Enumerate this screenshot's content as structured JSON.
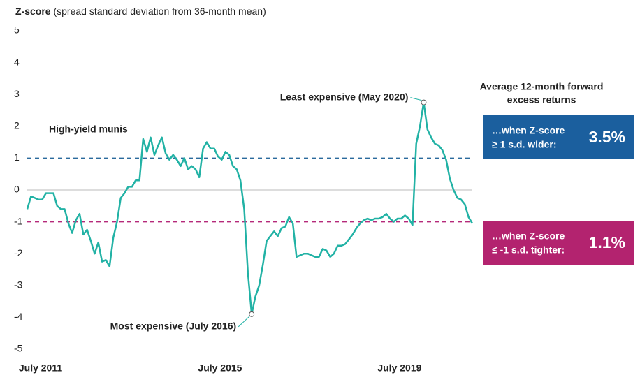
{
  "chart_data": {
    "type": "line",
    "y_label_bold": "Z-score",
    "y_label": "(spread standard deviation from 36-month mean)",
    "x": [
      "2011-07",
      "2011-08",
      "2011-09",
      "2011-10",
      "2011-11",
      "2011-12",
      "2012-01",
      "2012-02",
      "2012-03",
      "2012-04",
      "2012-05",
      "2012-06",
      "2012-07",
      "2012-08",
      "2012-09",
      "2012-10",
      "2012-11",
      "2012-12",
      "2013-01",
      "2013-02",
      "2013-03",
      "2013-04",
      "2013-05",
      "2013-06",
      "2013-07",
      "2013-08",
      "2013-09",
      "2013-10",
      "2013-11",
      "2013-12",
      "2014-01",
      "2014-02",
      "2014-03",
      "2014-04",
      "2014-05",
      "2014-06",
      "2014-07",
      "2014-08",
      "2014-09",
      "2014-10",
      "2014-11",
      "2014-12",
      "2015-01",
      "2015-02",
      "2015-03",
      "2015-04",
      "2015-05",
      "2015-06",
      "2015-07",
      "2015-08",
      "2015-09",
      "2015-10",
      "2015-11",
      "2015-12",
      "2016-01",
      "2016-02",
      "2016-03",
      "2016-04",
      "2016-05",
      "2016-06",
      "2016-07",
      "2016-08",
      "2016-09",
      "2016-10",
      "2016-11",
      "2016-12",
      "2017-01",
      "2017-02",
      "2017-03",
      "2017-04",
      "2017-05",
      "2017-06",
      "2017-07",
      "2017-08",
      "2017-09",
      "2017-10",
      "2017-11",
      "2017-12",
      "2018-01",
      "2018-02",
      "2018-03",
      "2018-04",
      "2018-05",
      "2018-06",
      "2018-07",
      "2018-08",
      "2018-09",
      "2018-10",
      "2018-11",
      "2018-12",
      "2019-01",
      "2019-02",
      "2019-03",
      "2019-04",
      "2019-05",
      "2019-06",
      "2019-07",
      "2019-08",
      "2019-09",
      "2019-10",
      "2019-11",
      "2019-12",
      "2020-01",
      "2020-02",
      "2020-03",
      "2020-04",
      "2020-05",
      "2020-06",
      "2020-07",
      "2020-08",
      "2020-09",
      "2020-10",
      "2020-11",
      "2020-12",
      "2021-01",
      "2021-02",
      "2021-03",
      "2021-04",
      "2021-05",
      "2021-06"
    ],
    "series": [
      {
        "name": "High-yield munis",
        "color": "#22b2a5",
        "values": [
          -0.6,
          -0.2,
          -0.25,
          -0.3,
          -0.3,
          -0.1,
          -0.1,
          -0.1,
          -0.5,
          -0.6,
          -0.6,
          -1.05,
          -1.35,
          -0.95,
          -0.75,
          -1.4,
          -1.25,
          -1.6,
          -2.0,
          -1.65,
          -2.25,
          -2.2,
          -2.4,
          -1.5,
          -1.0,
          -0.25,
          -0.1,
          0.1,
          0.1,
          0.3,
          0.3,
          1.6,
          1.2,
          1.65,
          1.1,
          1.4,
          1.65,
          1.15,
          0.95,
          1.1,
          0.95,
          0.75,
          1.0,
          0.65,
          0.75,
          0.65,
          0.4,
          1.3,
          1.5,
          1.3,
          1.3,
          1.05,
          0.95,
          1.2,
          1.1,
          0.75,
          0.65,
          0.3,
          -0.6,
          -2.6,
          -3.9,
          -3.35,
          -3.0,
          -2.35,
          -1.6,
          -1.45,
          -1.3,
          -1.45,
          -1.2,
          -1.15,
          -0.85,
          -1.05,
          -2.1,
          -2.05,
          -2.0,
          -2.0,
          -2.05,
          -2.1,
          -2.1,
          -1.85,
          -1.9,
          -2.1,
          -2.0,
          -1.75,
          -1.75,
          -1.7,
          -1.55,
          -1.4,
          -1.2,
          -1.05,
          -0.95,
          -0.9,
          -0.95,
          -0.9,
          -0.9,
          -0.85,
          -0.75,
          -0.9,
          -1.0,
          -0.9,
          -0.9,
          -0.8,
          -0.9,
          -1.1,
          1.45,
          2.0,
          2.75,
          1.9,
          1.65,
          1.45,
          1.4,
          1.25,
          0.95,
          0.35,
          0.0,
          -0.25,
          -0.3,
          -0.45,
          -0.85,
          -1.05
        ]
      }
    ],
    "ylim": [
      -5,
      5
    ],
    "yticks": [
      -5,
      -4,
      -3,
      -2,
      -1,
      0,
      1,
      2,
      3,
      4,
      5
    ],
    "xticks": [
      {
        "value": "2011-07",
        "label": "July 2011"
      },
      {
        "value": "2015-07",
        "label": "July 2015"
      },
      {
        "value": "2019-07",
        "label": "July 2019"
      }
    ],
    "baseline": 0,
    "baseline_color": "#bbbbbb",
    "reference_lines": [
      {
        "value": 1,
        "color": "#2a6a9c"
      },
      {
        "value": -1,
        "color": "#b5297a"
      }
    ],
    "annotations": [
      {
        "text": "Least expensive (May 2020)",
        "x": "2020-05"
      },
      {
        "text": "Most expensive (July 2016)",
        "x": "2016-07"
      }
    ]
  },
  "side_panel": {
    "title_lines": [
      "Average 12-month forward",
      "excess returns"
    ],
    "boxes": [
      {
        "lines": [
          "…when Z-score",
          "≥ 1 s.d. wider:"
        ],
        "value": "3.5%",
        "color": "#1b5f9e"
      },
      {
        "lines": [
          "…when Z-score",
          "≤ -1 s.d. tighter:"
        ],
        "value": "1.1%",
        "color": "#b3236f"
      }
    ]
  }
}
